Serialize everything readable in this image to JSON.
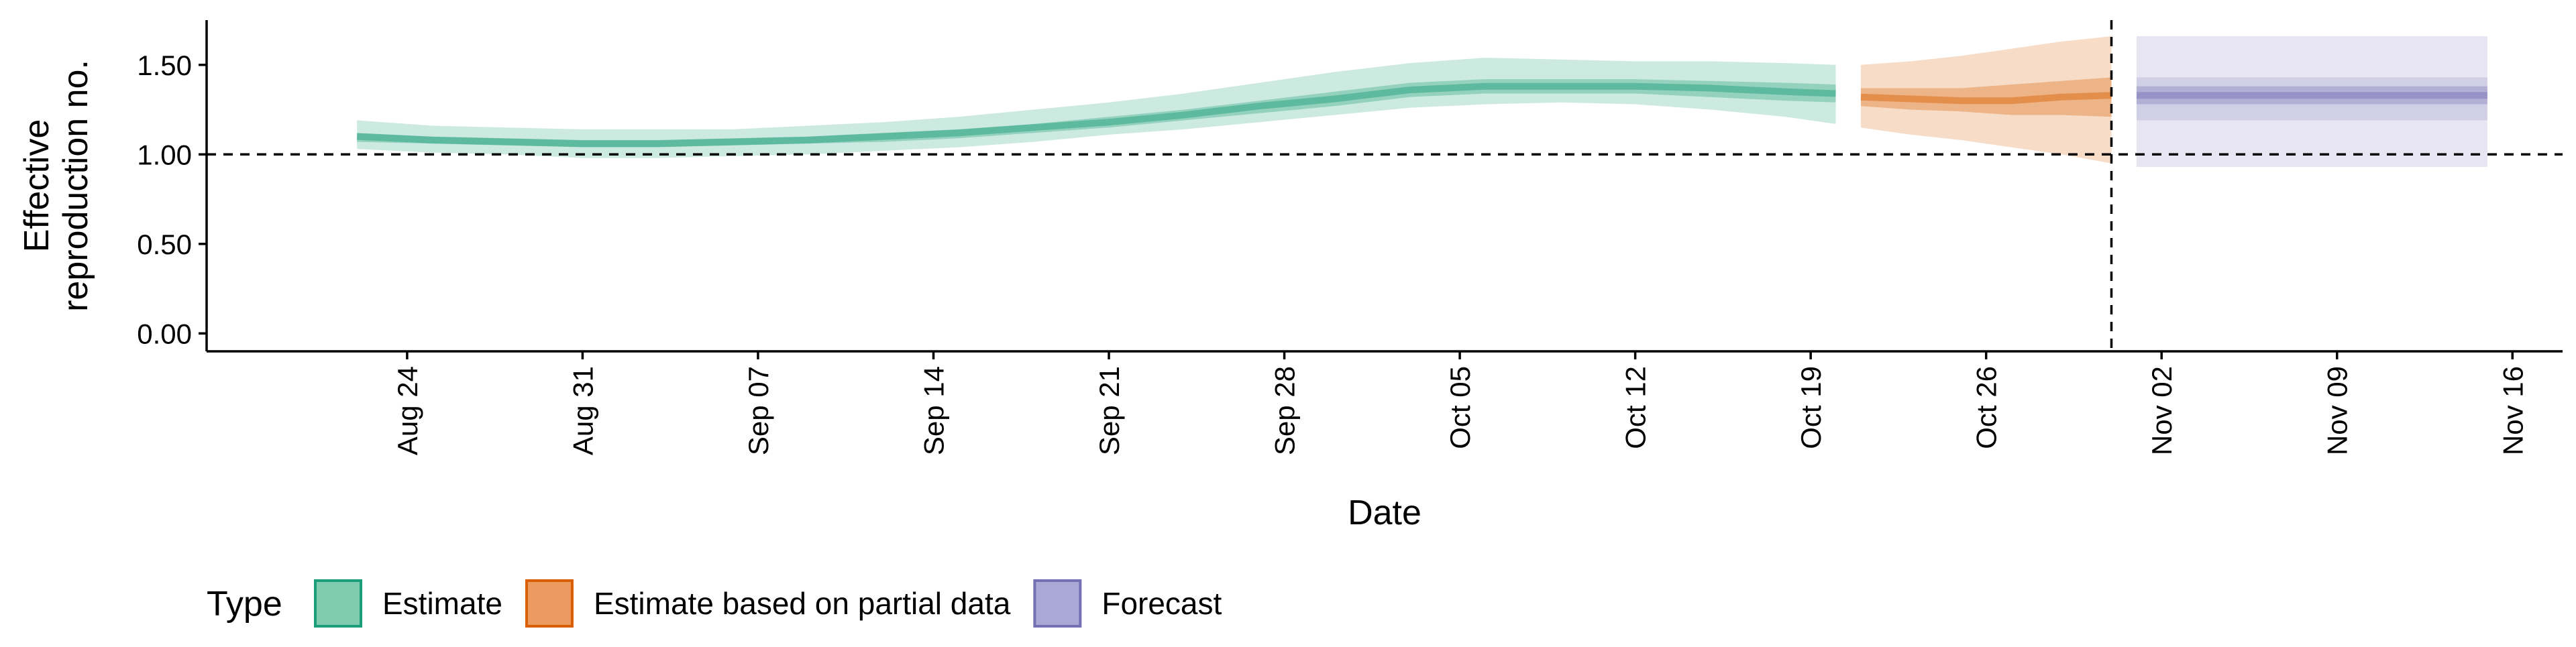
{
  "chart_data": {
    "type": "area",
    "xlabel": "Date",
    "ylabel_lines": [
      "Effective",
      "reproduction no."
    ],
    "ylim": [
      -0.1,
      1.75
    ],
    "xlim": [
      "2020-08-16",
      "2020-11-18"
    ],
    "y_ticks": [
      {
        "value": 0.0,
        "label": "0.00"
      },
      {
        "value": 0.5,
        "label": "0.50"
      },
      {
        "value": 1.0,
        "label": "1.00"
      },
      {
        "value": 1.5,
        "label": "1.50"
      }
    ],
    "x_ticks": [
      {
        "date": "2020-08-24",
        "label": "Aug 24"
      },
      {
        "date": "2020-08-31",
        "label": "Aug 31"
      },
      {
        "date": "2020-09-07",
        "label": "Sep 07"
      },
      {
        "date": "2020-09-14",
        "label": "Sep 14"
      },
      {
        "date": "2020-09-21",
        "label": "Sep 21"
      },
      {
        "date": "2020-09-28",
        "label": "Sep 28"
      },
      {
        "date": "2020-10-05",
        "label": "Oct 05"
      },
      {
        "date": "2020-10-12",
        "label": "Oct 12"
      },
      {
        "date": "2020-10-19",
        "label": "Oct 19"
      },
      {
        "date": "2020-10-26",
        "label": "Oct 26"
      },
      {
        "date": "2020-11-02",
        "label": "Nov 02"
      },
      {
        "date": "2020-11-09",
        "label": "Nov 09"
      },
      {
        "date": "2020-11-16",
        "label": "Nov 16"
      }
    ],
    "reference_hline": 1.0,
    "reference_vline": "2020-10-31",
    "legend": {
      "title": "Type",
      "position": "bottom-left",
      "entries": [
        {
          "label": "Estimate",
          "fill": "#7fcbb0",
          "border": "#1b9e77"
        },
        {
          "label": "Estimate based on partial data",
          "fill": "#ec9a60",
          "border": "#d95f02"
        },
        {
          "label": "Forecast",
          "fill": "#aaa8d4",
          "border": "#7570b3"
        }
      ]
    },
    "series": [
      {
        "name": "Estimate",
        "color": "#1b9e77",
        "x": [
          "2020-08-22",
          "2020-08-25",
          "2020-08-28",
          "2020-08-31",
          "2020-09-03",
          "2020-09-06",
          "2020-09-09",
          "2020-09-12",
          "2020-09-15",
          "2020-09-18",
          "2020-09-21",
          "2020-09-24",
          "2020-09-27",
          "2020-09-30",
          "2020-10-03",
          "2020-10-06",
          "2020-10-09",
          "2020-10-12",
          "2020-10-15",
          "2020-10-18",
          "2020-10-20"
        ],
        "median": [
          1.1,
          1.08,
          1.07,
          1.06,
          1.06,
          1.07,
          1.08,
          1.1,
          1.12,
          1.15,
          1.18,
          1.22,
          1.27,
          1.31,
          1.36,
          1.38,
          1.38,
          1.38,
          1.37,
          1.35,
          1.34
        ],
        "lower50": [
          1.07,
          1.06,
          1.05,
          1.04,
          1.04,
          1.05,
          1.06,
          1.07,
          1.09,
          1.12,
          1.15,
          1.19,
          1.23,
          1.27,
          1.32,
          1.34,
          1.34,
          1.34,
          1.32,
          1.3,
          1.29
        ],
        "upper50": [
          1.12,
          1.1,
          1.09,
          1.08,
          1.08,
          1.09,
          1.1,
          1.12,
          1.14,
          1.17,
          1.21,
          1.25,
          1.3,
          1.35,
          1.4,
          1.42,
          1.42,
          1.42,
          1.41,
          1.4,
          1.39
        ],
        "lower90": [
          1.03,
          1.01,
          1.0,
          0.98,
          0.98,
          0.99,
          1.0,
          1.02,
          1.04,
          1.07,
          1.11,
          1.14,
          1.18,
          1.22,
          1.26,
          1.28,
          1.29,
          1.28,
          1.25,
          1.21,
          1.17
        ],
        "upper90": [
          1.19,
          1.16,
          1.15,
          1.14,
          1.14,
          1.14,
          1.16,
          1.18,
          1.21,
          1.25,
          1.29,
          1.34,
          1.4,
          1.46,
          1.51,
          1.54,
          1.53,
          1.52,
          1.52,
          1.51,
          1.5
        ]
      },
      {
        "name": "Estimate based on partial data",
        "color": "#d95f02",
        "x": [
          "2020-10-21",
          "2020-10-23",
          "2020-10-25",
          "2020-10-27",
          "2020-10-29",
          "2020-10-31"
        ],
        "median": [
          1.32,
          1.31,
          1.3,
          1.3,
          1.32,
          1.33
        ],
        "lower50": [
          1.27,
          1.25,
          1.24,
          1.22,
          1.22,
          1.21
        ],
        "upper50": [
          1.37,
          1.37,
          1.37,
          1.39,
          1.41,
          1.43
        ],
        "lower90": [
          1.15,
          1.11,
          1.08,
          1.04,
          1.0,
          0.95
        ],
        "upper90": [
          1.5,
          1.52,
          1.55,
          1.59,
          1.63,
          1.66
        ]
      },
      {
        "name": "Forecast",
        "color": "#7570b3",
        "x": [
          "2020-11-01",
          "2020-11-15"
        ],
        "median": [
          1.33,
          1.33
        ],
        "lower50": [
          1.28,
          1.28
        ],
        "upper50": [
          1.38,
          1.38
        ],
        "lower90": [
          1.19,
          1.19
        ],
        "upper90": [
          1.43,
          1.43
        ],
        "lower95": [
          0.93,
          0.93
        ],
        "upper95": [
          1.66,
          1.66
        ]
      }
    ]
  }
}
